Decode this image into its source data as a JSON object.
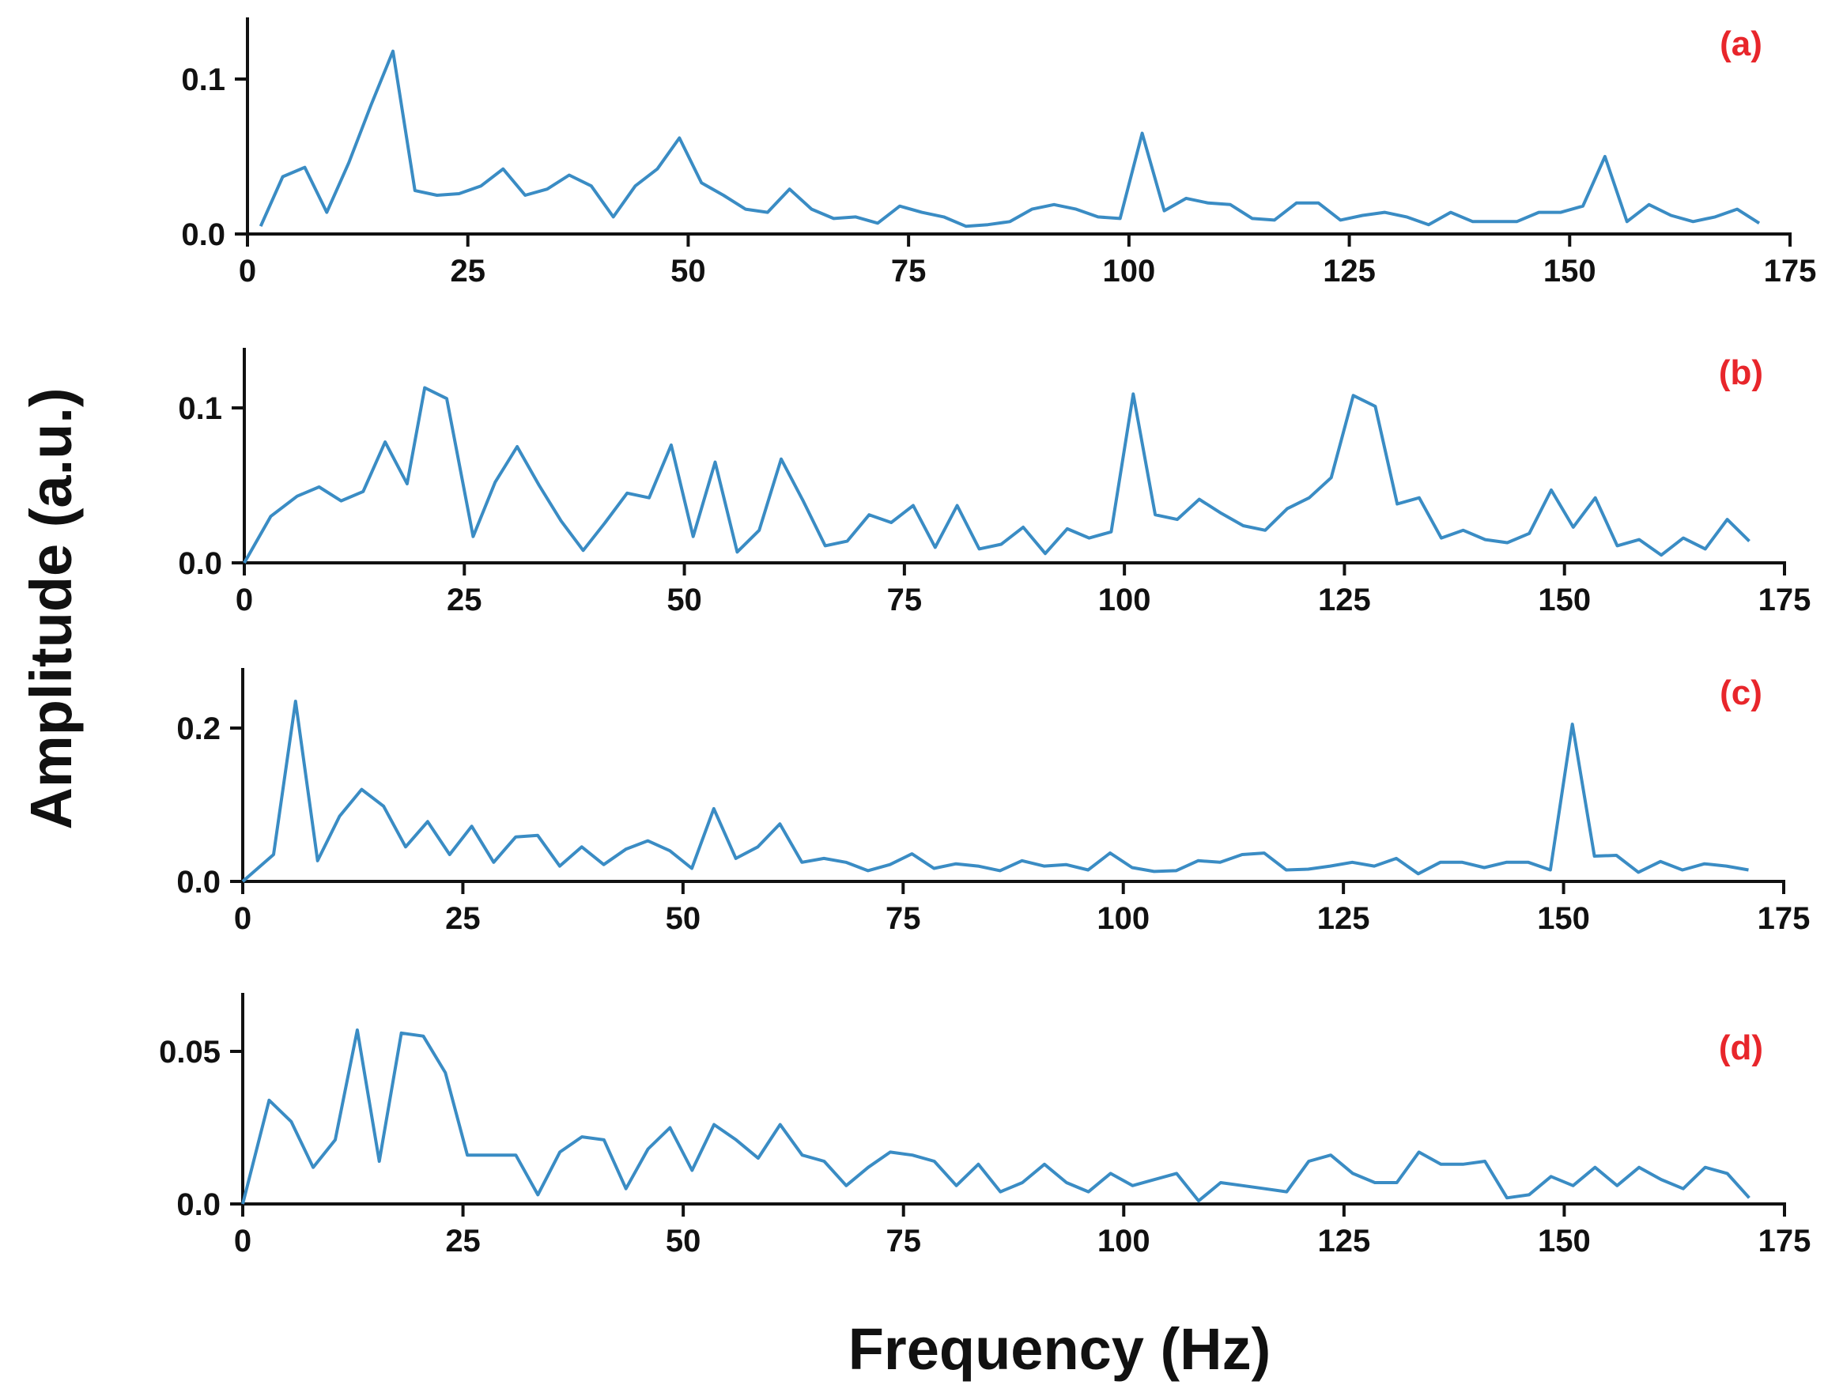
{
  "figure": {
    "xlabel": "Frequency  (Hz)",
    "ylabel": "Amplitude  (a.u.)",
    "line_color": "#3a8cc4",
    "panel_label_color": "#e8262b",
    "axis_color": "#111111"
  },
  "chart_data": [
    {
      "type": "line",
      "panel_label": "(a)",
      "xlim": [
        0,
        175
      ],
      "ylim": [
        0,
        0.12
      ],
      "x_ticks": [
        0,
        25,
        50,
        75,
        100,
        125,
        150,
        175
      ],
      "y_ticks": [
        0.0,
        0.1
      ],
      "y_tick_labels": [
        "0.0",
        "0.1"
      ],
      "series": [
        {
          "x": [
            1.5,
            4,
            6.5,
            9,
            11.5,
            14,
            16.5,
            19,
            21.5,
            24,
            26.5,
            29,
            31.5,
            34,
            36.5,
            39,
            41.5,
            44,
            46.5,
            49,
            51.5,
            54,
            56.5,
            59,
            61.5,
            64,
            66.5,
            69,
            71.5,
            74,
            76.5,
            79,
            81.5,
            84,
            86.5,
            89,
            91.5,
            94,
            96.5,
            99,
            101.5,
            104,
            106.5,
            109,
            111.5,
            114,
            116.5,
            119,
            121.5,
            124,
            126.5,
            129,
            131.5,
            134,
            136.5,
            139,
            141.5,
            144,
            146.5,
            149,
            151.5,
            154,
            156.5,
            159,
            161.5,
            164,
            166.5,
            169,
            171.5
          ],
          "y": [
            0.005,
            0.037,
            0.043,
            0.014,
            0.046,
            0.083,
            0.118,
            0.028,
            0.025,
            0.026,
            0.031,
            0.042,
            0.025,
            0.029,
            0.038,
            0.031,
            0.011,
            0.031,
            0.042,
            0.062,
            0.033,
            0.025,
            0.016,
            0.014,
            0.029,
            0.016,
            0.01,
            0.011,
            0.007,
            0.018,
            0.014,
            0.011,
            0.005,
            0.006,
            0.008,
            0.016,
            0.019,
            0.016,
            0.011,
            0.01,
            0.065,
            0.015,
            0.023,
            0.02,
            0.019,
            0.01,
            0.009,
            0.02,
            0.02,
            0.009,
            0.012,
            0.014,
            0.011,
            0.006,
            0.014,
            0.008,
            0.008,
            0.008,
            0.014,
            0.014,
            0.018,
            0.05,
            0.008,
            0.019,
            0.012,
            0.008,
            0.011,
            0.016,
            0.007
          ]
        }
      ]
    },
    {
      "type": "line",
      "panel_label": "(b)",
      "xlim": [
        0,
        175
      ],
      "ylim": [
        0,
        0.12
      ],
      "x_ticks": [
        0,
        25,
        50,
        75,
        100,
        125,
        150,
        175
      ],
      "y_ticks": [
        0.0,
        0.1
      ],
      "y_tick_labels": [
        "0.0",
        "0.1"
      ],
      "series": [
        {
          "x": [
            0,
            3,
            6,
            8.5,
            11,
            13.5,
            16,
            18.5,
            20.5,
            23,
            26,
            28.5,
            31,
            33.5,
            36,
            38.5,
            41,
            43.5,
            46,
            48.5,
            51,
            53.5,
            56,
            58.5,
            61,
            63.5,
            66,
            68.5,
            71,
            73.5,
            76,
            78.5,
            81,
            83.5,
            86,
            88.5,
            91,
            93.5,
            96,
            98.5,
            101,
            103.5,
            106,
            108.5,
            111,
            113.5,
            116,
            118.5,
            121,
            123.5,
            126,
            128.5,
            131,
            133.5,
            136,
            138.5,
            141,
            143.5,
            146,
            148.5,
            151,
            153.5,
            156,
            158.5,
            161,
            163.5,
            166,
            168.5,
            171
          ],
          "y": [
            0.0,
            0.03,
            0.043,
            0.049,
            0.04,
            0.046,
            0.078,
            0.051,
            0.113,
            0.106,
            0.017,
            0.052,
            0.075,
            0.05,
            0.027,
            0.008,
            0.026,
            0.045,
            0.042,
            0.076,
            0.017,
            0.065,
            0.007,
            0.021,
            0.067,
            0.04,
            0.011,
            0.014,
            0.031,
            0.026,
            0.037,
            0.01,
            0.037,
            0.009,
            0.012,
            0.023,
            0.006,
            0.022,
            0.016,
            0.02,
            0.109,
            0.031,
            0.028,
            0.041,
            0.032,
            0.024,
            0.021,
            0.035,
            0.042,
            0.055,
            0.108,
            0.101,
            0.038,
            0.042,
            0.016,
            0.021,
            0.015,
            0.013,
            0.019,
            0.047,
            0.023,
            0.042,
            0.011,
            0.015,
            0.005,
            0.016,
            0.009,
            0.028,
            0.014
          ]
        }
      ]
    },
    {
      "type": "line",
      "panel_label": "(c)",
      "xlim": [
        0,
        175
      ],
      "ylim": [
        0,
        0.24
      ],
      "x_ticks": [
        0,
        25,
        50,
        75,
        100,
        125,
        150,
        175
      ],
      "y_ticks": [
        0.0,
        0.2
      ],
      "y_tick_labels": [
        "0.0",
        "0.2"
      ],
      "series": [
        {
          "x": [
            0,
            3.5,
            6,
            8.5,
            11,
            13.5,
            16,
            18.5,
            21,
            23.5,
            26,
            28.5,
            31,
            33.5,
            36,
            38.5,
            41,
            43.5,
            46,
            48.5,
            51,
            53.5,
            56,
            58.5,
            61,
            63.5,
            66,
            68.5,
            71,
            73.5,
            76,
            78.5,
            81,
            83.5,
            86,
            88.5,
            91,
            93.5,
            96,
            98.5,
            101,
            103.5,
            106,
            108.5,
            111,
            113.5,
            116,
            118.5,
            121,
            123.5,
            126,
            128.5,
            131,
            133.5,
            136,
            138.5,
            141,
            143.5,
            146,
            148.5,
            151,
            153.5,
            156,
            158.5,
            161,
            163.5,
            166,
            168.5,
            171
          ],
          "y": [
            0.0,
            0.035,
            0.235,
            0.027,
            0.085,
            0.12,
            0.098,
            0.045,
            0.078,
            0.035,
            0.072,
            0.025,
            0.058,
            0.06,
            0.02,
            0.045,
            0.022,
            0.042,
            0.053,
            0.04,
            0.017,
            0.095,
            0.03,
            0.045,
            0.075,
            0.025,
            0.03,
            0.025,
            0.014,
            0.022,
            0.036,
            0.017,
            0.023,
            0.02,
            0.014,
            0.027,
            0.02,
            0.022,
            0.015,
            0.037,
            0.018,
            0.013,
            0.014,
            0.027,
            0.025,
            0.035,
            0.037,
            0.015,
            0.016,
            0.02,
            0.025,
            0.02,
            0.03,
            0.01,
            0.025,
            0.025,
            0.018,
            0.025,
            0.025,
            0.015,
            0.205,
            0.033,
            0.034,
            0.012,
            0.026,
            0.015,
            0.023,
            0.02,
            0.015
          ]
        }
      ]
    },
    {
      "type": "line",
      "panel_label": "(d)",
      "xlim": [
        0,
        175
      ],
      "ylim": [
        0,
        0.06
      ],
      "x_ticks": [
        0,
        25,
        50,
        75,
        100,
        125,
        150,
        175
      ],
      "y_ticks": [
        0.0,
        0.05
      ],
      "y_tick_labels": [
        "0.0",
        "0.05"
      ],
      "series": [
        {
          "x": [
            0,
            3,
            5.5,
            8,
            10.5,
            13,
            15.5,
            18,
            20.5,
            23,
            25.5,
            28,
            31,
            33.5,
            36,
            38.5,
            41,
            43.5,
            46,
            48.5,
            51,
            53.5,
            56,
            58.5,
            61,
            63.5,
            66,
            68.5,
            71,
            73.5,
            76,
            78.5,
            81,
            83.5,
            86,
            88.5,
            91,
            93.5,
            96,
            98.5,
            101,
            103.5,
            106,
            108.5,
            111,
            113.5,
            116,
            118.5,
            121,
            123.5,
            126,
            128.5,
            131,
            133.5,
            136,
            138.5,
            141,
            143.5,
            146,
            148.5,
            151,
            153.5,
            156,
            158.5,
            161,
            163.5,
            166,
            168.5,
            171
          ],
          "y": [
            0.0,
            0.034,
            0.027,
            0.012,
            0.021,
            0.057,
            0.014,
            0.056,
            0.055,
            0.043,
            0.016,
            0.016,
            0.016,
            0.003,
            0.017,
            0.022,
            0.021,
            0.005,
            0.018,
            0.025,
            0.011,
            0.026,
            0.021,
            0.015,
            0.026,
            0.016,
            0.014,
            0.006,
            0.012,
            0.017,
            0.016,
            0.014,
            0.006,
            0.013,
            0.004,
            0.007,
            0.013,
            0.007,
            0.004,
            0.01,
            0.006,
            0.008,
            0.01,
            0.001,
            0.007,
            0.006,
            0.005,
            0.004,
            0.014,
            0.016,
            0.01,
            0.007,
            0.007,
            0.017,
            0.013,
            0.013,
            0.014,
            0.002,
            0.003,
            0.009,
            0.006,
            0.012,
            0.006,
            0.012,
            0.008,
            0.005,
            0.012,
            0.01,
            0.002
          ]
        }
      ]
    }
  ]
}
